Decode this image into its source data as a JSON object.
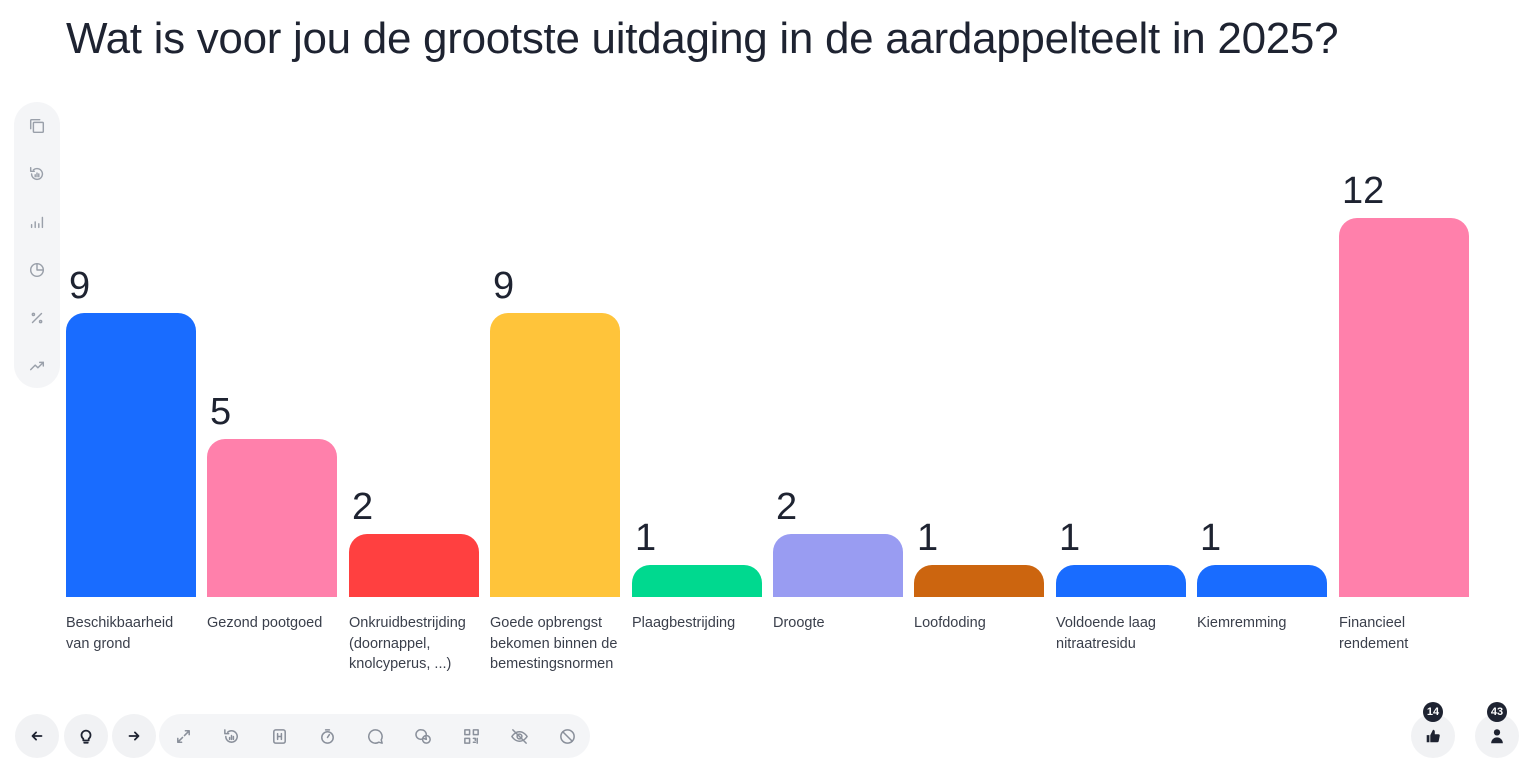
{
  "page": {
    "title": "Wat is voor jou de grootste uitdaging in de aardappelteelt in 2025?"
  },
  "chart_data": {
    "type": "bar",
    "title": "Wat is voor jou de grootste uitdaging in de aardappelteelt in 2025?",
    "xlabel": "",
    "ylabel": "",
    "ylim": [
      0,
      12
    ],
    "categories": [
      "Beschikbaarheid van grond",
      "Gezond pootgoed",
      "Onkruidbestrijding (doornappel, knolcyperus, ...)",
      "Goede opbrengst bekomen binnen de bemestingsnormen",
      "Plaagbestrijding",
      "Droogte",
      "Loofdoding",
      "Voldoende laag nitraatresidu",
      "Kiemremming",
      "Financieel rendement"
    ],
    "label_lines": [
      [
        "Beschikbaarheid",
        "van grond"
      ],
      [
        "Gezond pootgoed"
      ],
      [
        "Onkruidbestrijding",
        "(doornappel,",
        "knolcyperus, ...)"
      ],
      [
        "Goede opbrengst",
        "bekomen binnen de",
        "bemestingsnormen"
      ],
      [
        "Plaagbestrijding"
      ],
      [
        "Droogte"
      ],
      [
        "Loofdoding"
      ],
      [
        "Voldoende laag",
        "nitraatresidu"
      ],
      [
        "Kiemremming"
      ],
      [
        "Financieel",
        "rendement"
      ]
    ],
    "values": [
      9,
      5,
      2,
      9,
      1,
      2,
      1,
      1,
      1,
      12
    ],
    "colors": [
      "#196cff",
      "#ff80ab",
      "#ff4040",
      "#ffc43a",
      "#00d98f",
      "#999cf2",
      "#cc650f",
      "#196cff",
      "#196cff",
      "#ff80ab"
    ],
    "grid": false,
    "legend": "none"
  },
  "side_tools": [
    {
      "icon": "copy-icon"
    },
    {
      "icon": "reset-results-icon"
    },
    {
      "icon": "bar-chart-icon"
    },
    {
      "icon": "pie-chart-icon"
    },
    {
      "icon": "percent-icon"
    },
    {
      "icon": "trend-icon"
    }
  ],
  "toolbar": {
    "prev_icon": "arrow-left-icon",
    "hint_icon": "lightbulb-icon",
    "next_icon": "arrow-right-icon",
    "tools": [
      "fullscreen-icon",
      "reset-icon",
      "hide-results-icon",
      "timer-icon",
      "chat-icon",
      "qa-icon",
      "qr-code-icon",
      "hide-icon",
      "disable-icon"
    ]
  },
  "counters": {
    "reactions": "14",
    "participants": "43"
  }
}
